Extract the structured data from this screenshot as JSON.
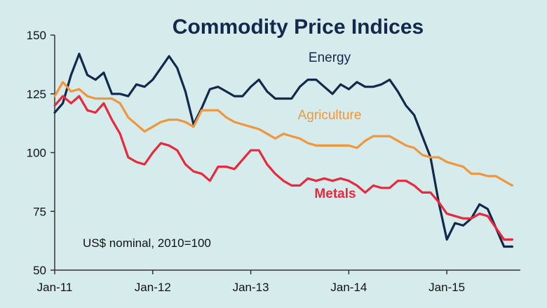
{
  "chart_data": {
    "type": "line",
    "title": "Commodity Price Indices",
    "note": "US$ nominal, 2010=100",
    "xlabel": "",
    "ylabel": "",
    "ylim": [
      50,
      150
    ],
    "yticks": [
      50,
      75,
      100,
      125,
      150
    ],
    "xticks": [
      {
        "label": "Jan-11",
        "month": 0
      },
      {
        "label": "Jan-12",
        "month": 12
      },
      {
        "label": "Jan-13",
        "month": 24
      },
      {
        "label": "Jan-14",
        "month": 36
      },
      {
        "label": "Jan-15",
        "month": 48
      }
    ],
    "x_range": [
      0,
      57
    ],
    "x_unit": "months since Jan-2011",
    "grid": false,
    "series": [
      {
        "name": "Energy",
        "color": "#13294b",
        "label_bold": false,
        "values": [
          117,
          121,
          133,
          142,
          133,
          131,
          134,
          125,
          125,
          124,
          129,
          128,
          131,
          136,
          141,
          136,
          126,
          112,
          119,
          127,
          128,
          126,
          124,
          124,
          128,
          131,
          126,
          123,
          123,
          123,
          128,
          131,
          131,
          128,
          125,
          129,
          127,
          130,
          128,
          128,
          129,
          131,
          126,
          120,
          116,
          107,
          98,
          79,
          63,
          70,
          69,
          72,
          78,
          76,
          68,
          60,
          60
        ]
      },
      {
        "name": "Agriculture",
        "color": "#f0963c",
        "label_bold": false,
        "values": [
          124,
          130,
          126,
          127,
          124,
          123,
          123,
          123,
          121,
          115,
          112,
          109,
          111,
          113,
          114,
          114,
          113,
          111,
          118,
          118,
          118,
          115,
          113,
          112,
          111,
          110,
          108,
          106,
          108,
          107,
          106,
          104,
          103,
          103,
          103,
          103,
          103,
          102,
          105,
          107,
          107,
          107,
          105,
          103,
          102,
          99,
          98,
          98,
          96,
          95,
          94,
          91,
          91,
          90,
          90,
          88,
          86
        ]
      },
      {
        "name": "Metals",
        "color": "#e8283c",
        "label_bold": true,
        "values": [
          120,
          124,
          121,
          124,
          118,
          117,
          121,
          114,
          108,
          98,
          96,
          95,
          100,
          104,
          103,
          101,
          95,
          92,
          91,
          88,
          94,
          94,
          93,
          97,
          101,
          101,
          95,
          91,
          88,
          86,
          86,
          89,
          88,
          89,
          88,
          89,
          88,
          86,
          83,
          86,
          85,
          85,
          88,
          88,
          86,
          83,
          83,
          79,
          74,
          73,
          72,
          72,
          74,
          73,
          68,
          63,
          63
        ]
      }
    ]
  }
}
